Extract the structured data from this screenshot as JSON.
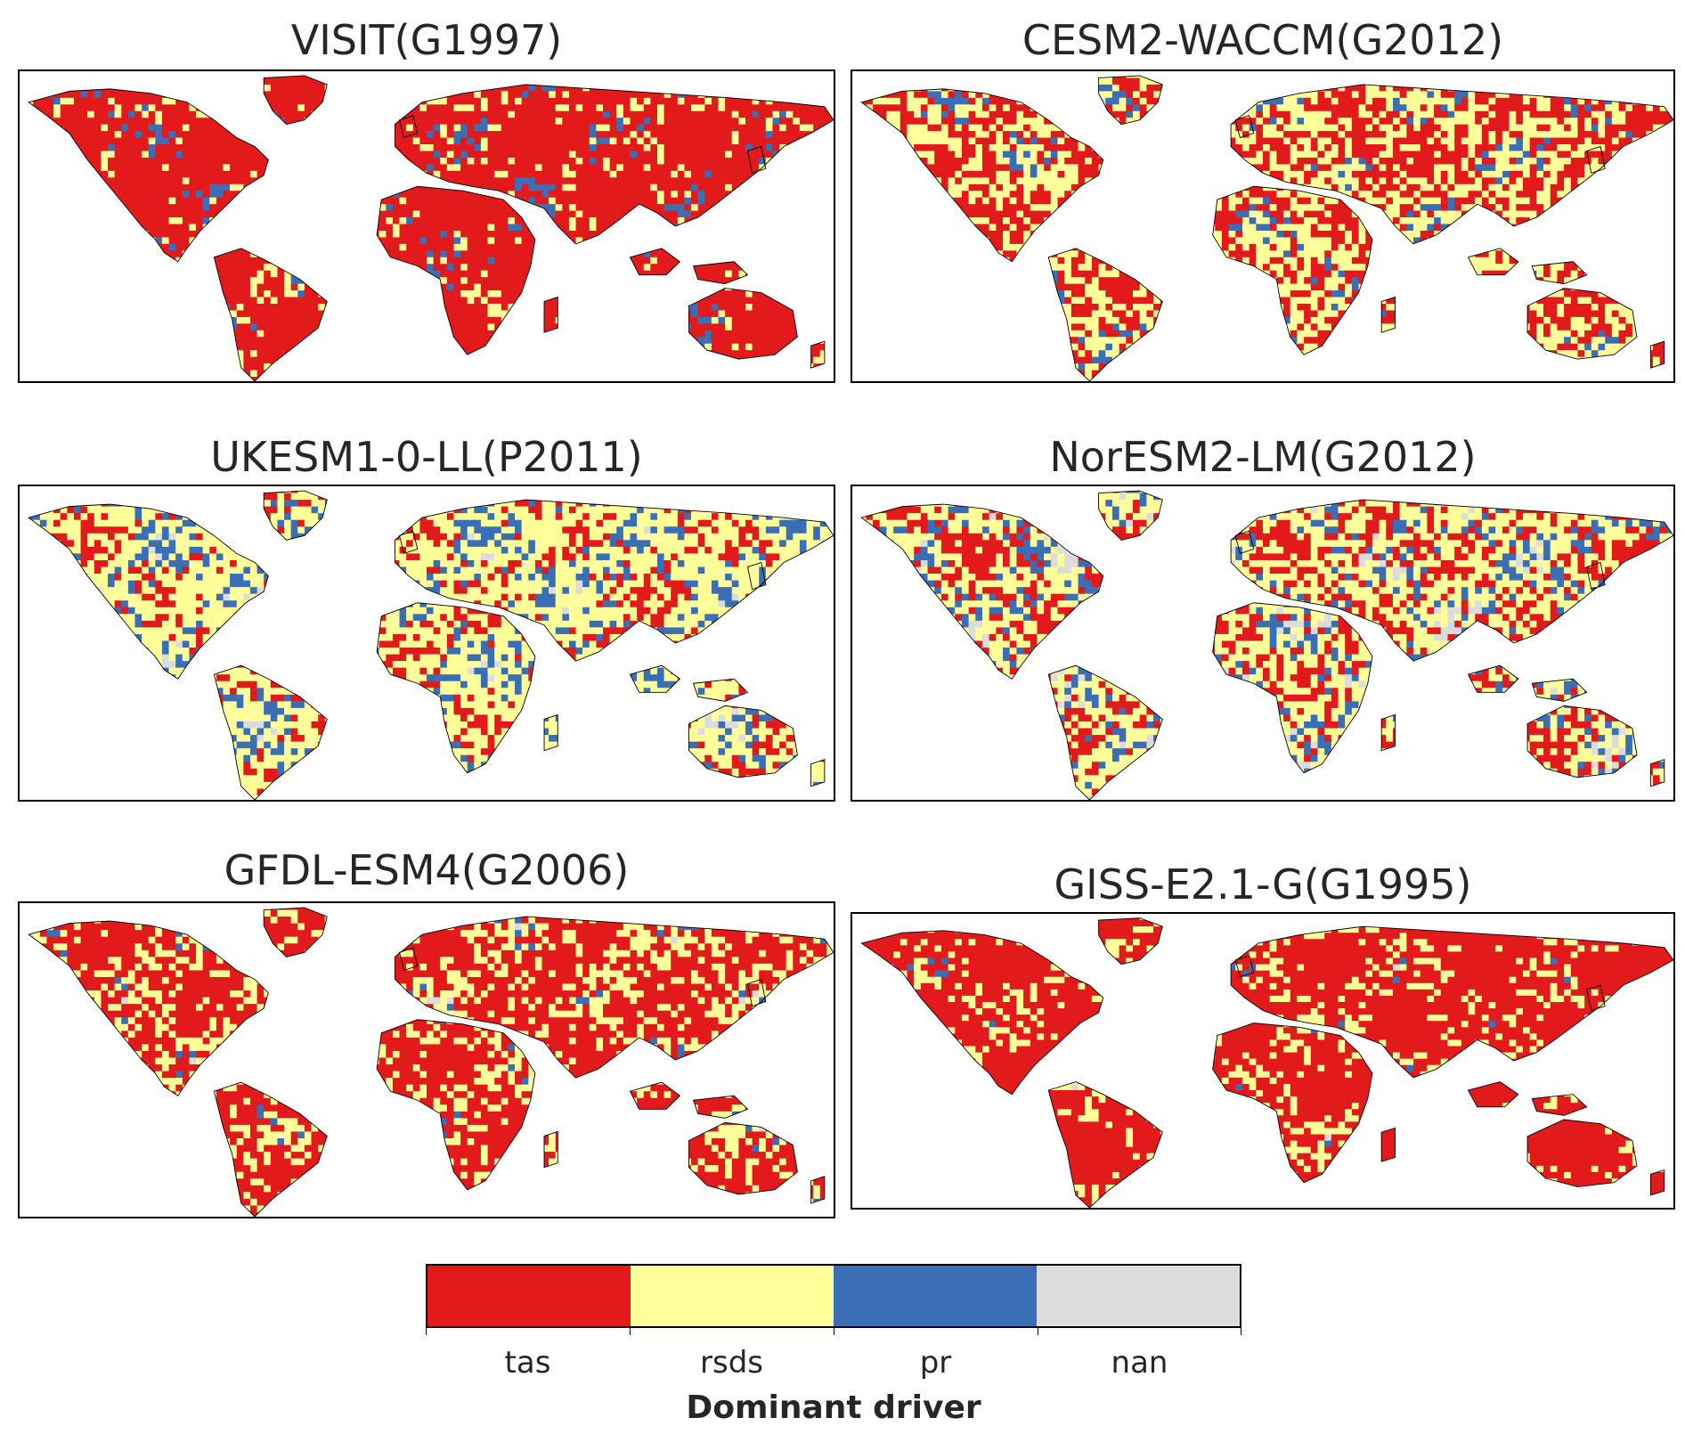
{
  "colors": {
    "tas": "#e31a1c",
    "rsds": "#ffff99",
    "pr": "#3a6eb5",
    "nan": "#dcdcdc"
  },
  "panels": [
    {
      "title": "VISIT(G1997)",
      "mix": {
        "tas": 0.72,
        "rsds": 0.1,
        "pr": 0.17,
        "nan": 0.01
      }
    },
    {
      "title": "CESM2-WACCM(G2012)",
      "mix": {
        "tas": 0.48,
        "rsds": 0.33,
        "pr": 0.16,
        "nan": 0.03
      }
    },
    {
      "title": "UKESM1-0-LL(P2011)",
      "mix": {
        "tas": 0.3,
        "rsds": 0.4,
        "pr": 0.2,
        "nan": 0.1
      }
    },
    {
      "title": "NorESM2-LM(G2012)",
      "mix": {
        "tas": 0.4,
        "rsds": 0.3,
        "pr": 0.15,
        "nan": 0.15
      }
    },
    {
      "title": "GFDL-ESM4(G2006)",
      "mix": {
        "tas": 0.6,
        "rsds": 0.28,
        "pr": 0.07,
        "nan": 0.05
      }
    },
    {
      "title": "GISS-E2.1-G(G1995)",
      "mix": {
        "tas": 0.7,
        "rsds": 0.22,
        "pr": 0.05,
        "nan": 0.03
      }
    }
  ],
  "legend": {
    "categories": [
      "tas",
      "rsds",
      "pr",
      "nan"
    ],
    "title": "Dominant driver"
  }
}
